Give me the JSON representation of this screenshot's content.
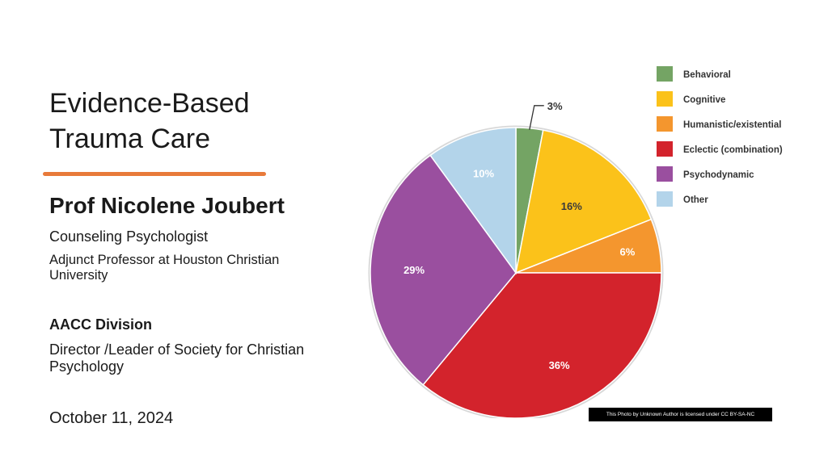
{
  "slide": {
    "title_line1": "Evidence-Based",
    "title_line2": "Trauma Care",
    "presenter": "Prof Nicolene Joubert",
    "role": "Counseling Psychologist",
    "affiliation_line1": "Adjunct Professor at Houston Christian",
    "affiliation_line2": "University",
    "division": "AACC Division",
    "director_line1": "Director /Leader of Society for Christian",
    "director_line2": "Psychology",
    "date": "October 11, 2024",
    "photo_credit": "This Photo by Unknown Author is licensed under CC BY-SA-NC",
    "accent_color": "#e87a3a"
  },
  "chart_data": {
    "type": "pie",
    "title": "",
    "legend_position": "top-right",
    "slices": [
      {
        "name": "Behavioral",
        "value": 3,
        "label": "3%",
        "color": "#74a464"
      },
      {
        "name": "Cognitive",
        "value": 16,
        "label": "16%",
        "color": "#fbc21a"
      },
      {
        "name": "Humanistic/existential",
        "value": 6,
        "label": "6%",
        "color": "#f4962e"
      },
      {
        "name": "Eclectic (combination)",
        "value": 36,
        "label": "36%",
        "color": "#d3232c"
      },
      {
        "name": "Psychodynamic",
        "value": 29,
        "label": "29%",
        "color": "#9a4f9f"
      },
      {
        "name": "Other",
        "value": 10,
        "label": "10%",
        "color": "#b3d4ea"
      }
    ]
  }
}
